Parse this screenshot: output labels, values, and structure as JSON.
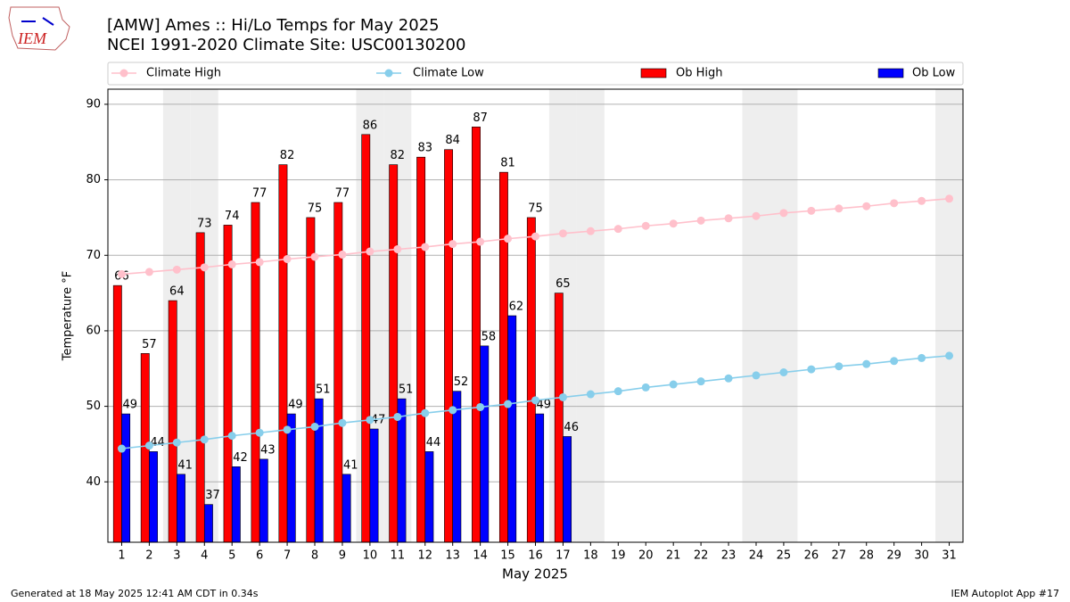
{
  "logo": "IEM",
  "chart_data": {
    "type": "bar",
    "title": "[AMW] Ames :: Hi/Lo Temps for May 2025",
    "subtitle": "NCEI 1991-2020 Climate Site: USC00130200",
    "x_label": "May 2025",
    "y_label": "Temperature °F",
    "x": [
      1,
      2,
      3,
      4,
      5,
      6,
      7,
      8,
      9,
      10,
      11,
      12,
      13,
      14,
      15,
      16,
      17,
      18,
      19,
      20,
      21,
      22,
      23,
      24,
      25,
      26,
      27,
      28,
      29,
      30,
      31
    ],
    "xlim": [
      0.5,
      31.5
    ],
    "xticks": [
      1,
      2,
      3,
      4,
      5,
      6,
      7,
      8,
      9,
      10,
      11,
      12,
      13,
      14,
      15,
      16,
      17,
      18,
      19,
      20,
      21,
      22,
      23,
      24,
      25,
      26,
      27,
      28,
      29,
      30,
      31
    ],
    "ylim": [
      32,
      92
    ],
    "yticks": [
      40,
      50,
      60,
      70,
      80,
      90
    ],
    "grid": true,
    "shaded_days": [
      3,
      4,
      10,
      11,
      17,
      18,
      24,
      25,
      31
    ],
    "shade_color": "#eeeeee",
    "legend": "top",
    "series": [
      {
        "name": "Climate High",
        "kind": "line",
        "color": "#ffc0cb",
        "values": [
          67.5,
          67.8,
          68.1,
          68.4,
          68.8,
          69.1,
          69.5,
          69.8,
          70.1,
          70.5,
          70.8,
          71.1,
          71.5,
          71.8,
          72.2,
          72.5,
          72.9,
          73.2,
          73.5,
          73.9,
          74.2,
          74.6,
          74.9,
          75.2,
          75.6,
          75.9,
          76.2,
          76.5,
          76.9,
          77.2,
          77.5
        ]
      },
      {
        "name": "Climate Low",
        "kind": "line",
        "color": "#87ceeb",
        "values": [
          44.4,
          44.8,
          45.2,
          45.6,
          46.1,
          46.5,
          46.9,
          47.3,
          47.8,
          48.2,
          48.6,
          49.1,
          49.5,
          49.9,
          50.3,
          50.8,
          51.2,
          51.6,
          52.0,
          52.5,
          52.9,
          53.3,
          53.7,
          54.1,
          54.5,
          54.9,
          55.3,
          55.6,
          56.0,
          56.4,
          56.7
        ]
      },
      {
        "name": "Ob High",
        "kind": "bar",
        "color": "#ff0000",
        "values": [
          66,
          57,
          64,
          73,
          74,
          77,
          82,
          75,
          77,
          86,
          82,
          83,
          84,
          87,
          81,
          75,
          65,
          null,
          null,
          null,
          null,
          null,
          null,
          null,
          null,
          null,
          null,
          null,
          null,
          null,
          null
        ]
      },
      {
        "name": "Ob Low",
        "kind": "bar",
        "color": "#0000ff",
        "values": [
          49,
          44,
          41,
          37,
          42,
          43,
          49,
          51,
          41,
          47,
          51,
          44,
          52,
          58,
          62,
          49,
          46,
          null,
          null,
          null,
          null,
          null,
          null,
          null,
          null,
          null,
          null,
          null,
          null,
          null,
          null
        ]
      }
    ]
  },
  "footer": {
    "left": "Generated at 18 May 2025 12:41 AM CDT in 0.34s",
    "right": "IEM Autoplot App #17"
  }
}
